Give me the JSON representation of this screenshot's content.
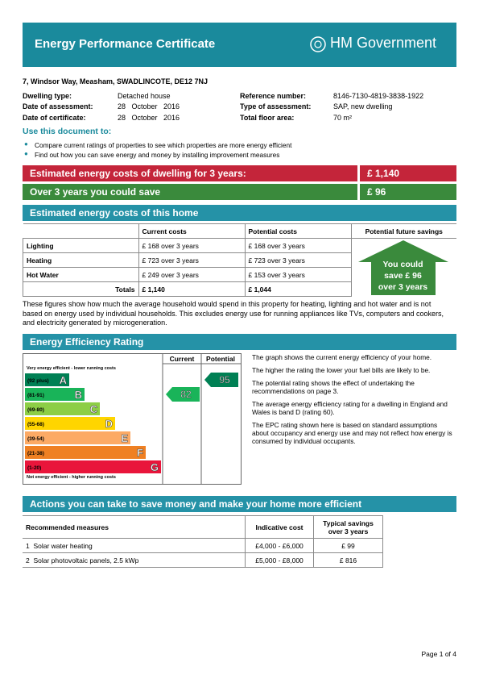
{
  "header": {
    "title": "Energy Performance Certificate",
    "brand": "HM Government"
  },
  "address": "7, Windsor Way, Measham, SWADLINCOTE, DE12 7NJ",
  "details": {
    "left": [
      [
        "Dwelling type:",
        "Detached house"
      ],
      [
        "Date of assessment:",
        "28   October   2016"
      ],
      [
        "Date of certificate:",
        "28   October   2016"
      ]
    ],
    "right": [
      [
        "Reference number:",
        "8146-7130-4819-3838-1922"
      ],
      [
        "Type of assessment:",
        "SAP, new dwelling"
      ],
      [
        "Total floor area:",
        "70 m²"
      ]
    ]
  },
  "use": {
    "heading": "Use this document to:",
    "bullets": [
      "Compare current ratings of properties to see which properties are more energy efficient",
      "Find out how you can save energy and money by installing improvement measures"
    ]
  },
  "banner": {
    "cost": {
      "label": "Estimated energy costs of dwelling for 3 years:",
      "value": "£ 1,140"
    },
    "save": {
      "label": "Over 3 years you could save",
      "value": "£ 96"
    }
  },
  "costs": {
    "heading": "Estimated energy costs of this home",
    "columns": [
      "Current costs",
      "Potential costs",
      "Potential future savings"
    ],
    "rows": [
      [
        "Lighting",
        "£ 168 over 3 years",
        "£ 168 over 3 years"
      ],
      [
        "Heating",
        "£ 723 over 3 years",
        "£ 723 over 3 years"
      ],
      [
        "Hot Water",
        "£ 249 over 3 years",
        "£ 153 over 3 years"
      ]
    ],
    "totals": [
      "Totals",
      "£ 1,140",
      "£ 1,044"
    ],
    "savings": [
      "You could",
      "save £ 96",
      "over 3 years"
    ],
    "note": "These figures show how much the average household would spend in this property for heating, lighting and hot water and is not based on energy used by individual households. This excludes energy use for running appliances like TVs, computers and cookers, and electricity generated by microgeneration."
  },
  "efficiency": {
    "heading": "Energy Efficiency Rating",
    "col_current": "Current",
    "col_potential": "Potential",
    "top_label": "Very energy efficient - lower running costs",
    "bottom_label": "Not energy efficient - higher running costs",
    "bands": [
      {
        "range": "(92 plus)",
        "letter": "A",
        "color": "#008054"
      },
      {
        "range": "(81-91)",
        "letter": "B",
        "color": "#19b459"
      },
      {
        "range": "(69-80)",
        "letter": "C",
        "color": "#8dce46"
      },
      {
        "range": "(55-68)",
        "letter": "D",
        "color": "#ffd500"
      },
      {
        "range": "(39-54)",
        "letter": "E",
        "color": "#fcaa65"
      },
      {
        "range": "(21-38)",
        "letter": "F",
        "color": "#ef8023"
      },
      {
        "range": "(1-20)",
        "letter": "G",
        "color": "#e9153b"
      }
    ],
    "current": 82,
    "potential": 95,
    "paragraphs": [
      "The graph shows the current energy efficiency of your home.",
      "The higher the rating the lower your fuel bills are likely to be.",
      "The potential rating shows the effect of undertaking the recommendations on page 3.",
      "The average energy efficiency rating for a dwelling in England and Wales is band D (rating 60).",
      "The EPC rating shown here is based on standard assumptions about occupancy and energy use and may not reflect how energy is consumed by individual occupants."
    ]
  },
  "actions": {
    "heading": "Actions you can take to save money and make your home more efficient",
    "columns": [
      "Recommended measures",
      "Indicative cost",
      "Typical savings over 3 years"
    ],
    "rows": [
      [
        "1",
        "Solar water heating",
        "£4,000 - £6,000",
        "£ 99"
      ],
      [
        "2",
        "Solar photovoltaic panels, 2.5 kWp",
        "£5,000 - £8,000",
        "£ 816"
      ]
    ]
  },
  "footer": "Page 1 of 4"
}
